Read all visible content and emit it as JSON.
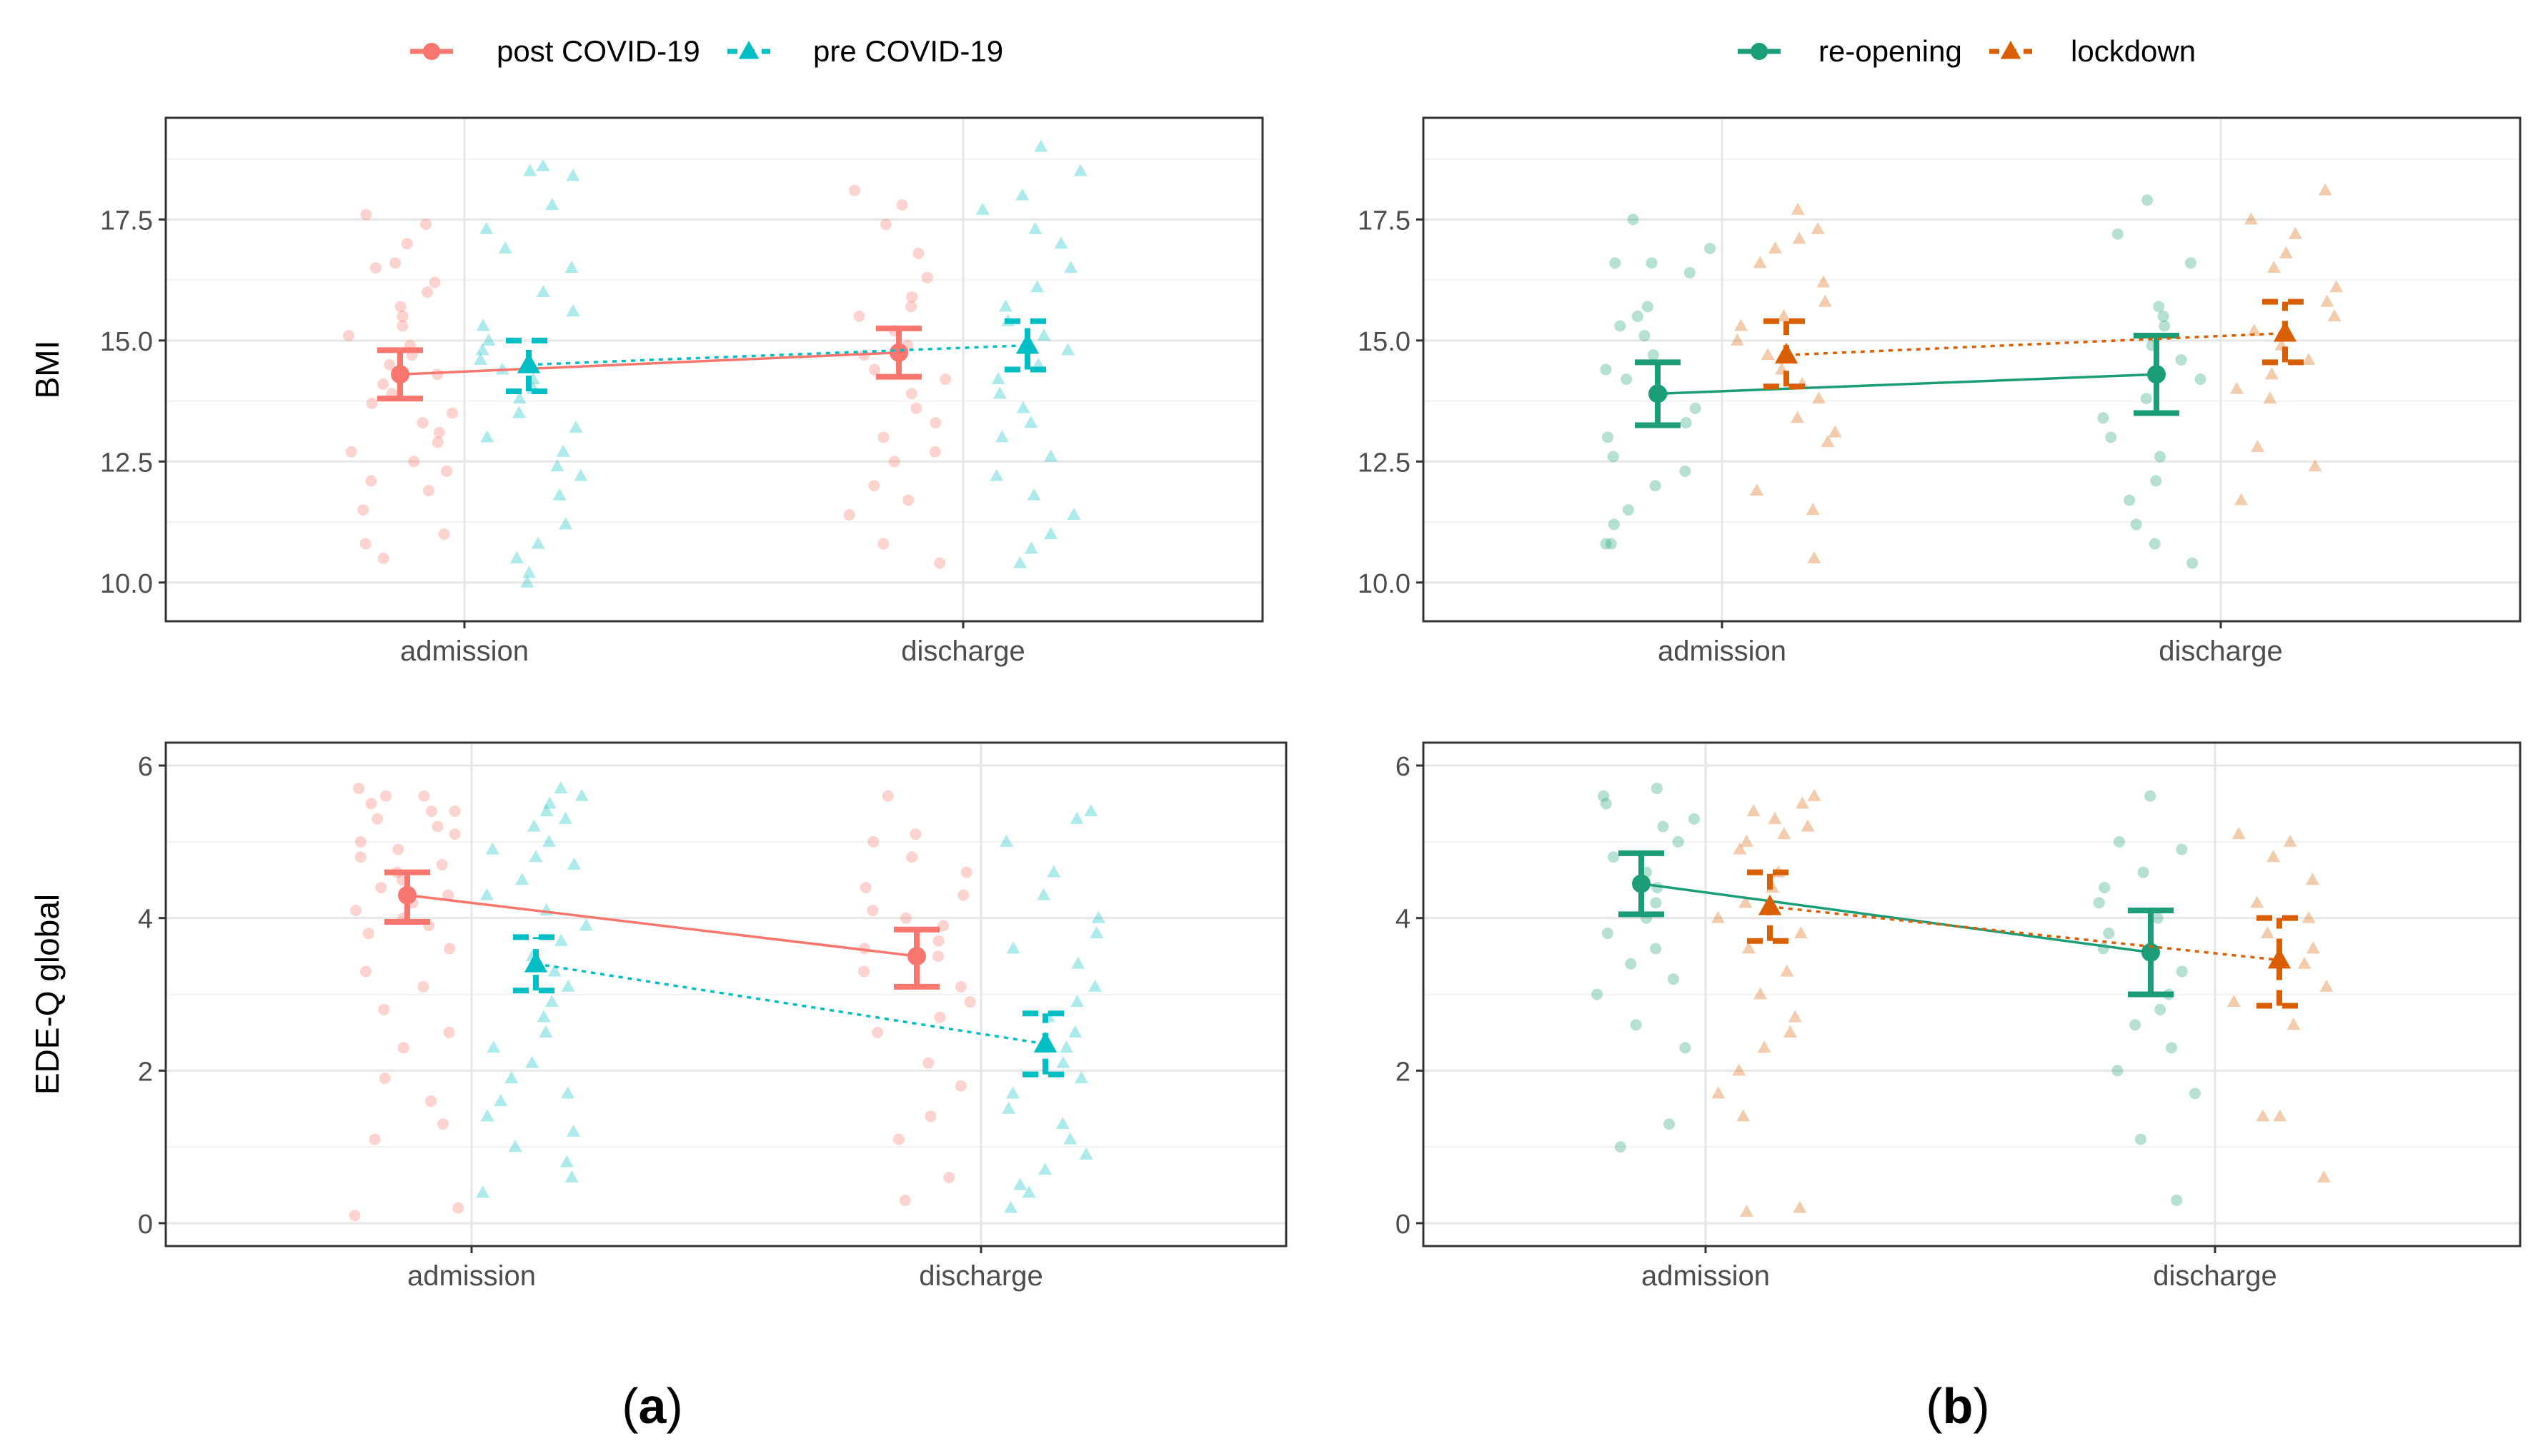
{
  "figure": {
    "panel_labels": {
      "a": {
        "open": "(",
        "letter": "a",
        "close": ")"
      },
      "b": {
        "open": "(",
        "letter": "b",
        "close": ")"
      }
    },
    "legends": {
      "a": [
        {
          "label": "post COVID-19",
          "marker": "circle",
          "color": "#F8766D",
          "line": "solid"
        },
        {
          "label": "pre COVID-19",
          "marker": "triangle",
          "color": "#00BFC4",
          "line": "dashed"
        }
      ],
      "b": [
        {
          "label": "re-opening",
          "marker": "circle",
          "color": "#1B9E77",
          "line": "solid"
        },
        {
          "label": "lockdown",
          "marker": "triangle",
          "color": "#D95F02",
          "line": "dashed"
        }
      ]
    }
  },
  "chart_data": [
    {
      "id": "a-bmi",
      "type": "scatter",
      "panel": "a",
      "ylabel": "BMI",
      "ylim": [
        9.2,
        19.6
      ],
      "yticks": [
        10.0,
        12.5,
        15.0,
        17.5
      ],
      "ytick_labels": [
        "10.0",
        "12.5",
        "15.0",
        "17.5"
      ],
      "categories": [
        "admission",
        "discharge"
      ],
      "series": [
        {
          "name": "post COVID-19",
          "color": "#F8766D",
          "marker": "circle",
          "line": "solid",
          "means": [
            14.3,
            14.75
          ],
          "ci_low": [
            13.8,
            14.25
          ],
          "ci_high": [
            14.8,
            15.25
          ],
          "points": [
            [
              17.6,
              17.4,
              17.0,
              16.6,
              16.5,
              16.2,
              16.0,
              15.7,
              15.5,
              15.3,
              15.1,
              14.9,
              14.7,
              14.5,
              14.3,
              14.1,
              13.9,
              13.7,
              13.5,
              13.3,
              13.1,
              12.9,
              12.7,
              12.5,
              12.3,
              12.1,
              11.9,
              11.5,
              11.0,
              10.8,
              10.5
            ],
            [
              18.1,
              17.8,
              17.4,
              16.8,
              16.3,
              15.9,
              15.7,
              15.5,
              15.2,
              14.9,
              14.7,
              14.4,
              14.2,
              13.9,
              13.6,
              13.3,
              13.0,
              12.7,
              12.5,
              12.0,
              11.7,
              11.4,
              10.8,
              10.4
            ]
          ]
        },
        {
          "name": "pre COVID-19",
          "color": "#00BFC4",
          "marker": "triangle",
          "line": "dashed",
          "means": [
            14.5,
            14.9
          ],
          "ci_low": [
            13.95,
            14.4
          ],
          "ci_high": [
            15.0,
            15.4
          ],
          "points": [
            [
              18.6,
              18.5,
              18.4,
              17.8,
              17.3,
              16.9,
              16.5,
              16.0,
              15.6,
              15.3,
              15.0,
              14.8,
              14.6,
              14.4,
              14.2,
              14.0,
              13.8,
              13.5,
              13.2,
              13.0,
              12.7,
              12.4,
              12.2,
              11.8,
              11.2,
              10.8,
              10.5,
              10.2,
              10.0
            ],
            [
              19.0,
              18.5,
              18.0,
              17.7,
              17.3,
              17.0,
              16.5,
              16.1,
              15.7,
              15.4,
              15.1,
              14.8,
              14.5,
              14.2,
              13.9,
              13.6,
              13.3,
              13.0,
              12.6,
              12.2,
              11.8,
              11.4,
              11.0,
              10.7,
              10.4
            ]
          ]
        }
      ]
    },
    {
      "id": "b-bmi",
      "type": "scatter",
      "panel": "b",
      "ylabel": "",
      "ylim": [
        9.2,
        19.6
      ],
      "yticks": [
        10.0,
        12.5,
        15.0,
        17.5
      ],
      "ytick_labels": [
        "10.0",
        "12.5",
        "15.0",
        "17.5"
      ],
      "categories": [
        "admission",
        "discharge"
      ],
      "series": [
        {
          "name": "re-opening",
          "color": "#1B9E77",
          "marker": "circle",
          "line": "solid",
          "means": [
            13.9,
            14.3
          ],
          "ci_low": [
            13.25,
            13.5
          ],
          "ci_high": [
            14.55,
            15.1
          ],
          "points": [
            [
              17.5,
              16.9,
              16.6,
              16.6,
              16.4,
              15.7,
              15.5,
              15.3,
              15.1,
              14.7,
              14.4,
              14.2,
              13.9,
              13.6,
              13.3,
              13.0,
              12.6,
              12.3,
              12.0,
              11.5,
              11.2,
              10.8,
              10.8
            ],
            [
              17.9,
              17.2,
              16.6,
              15.7,
              15.5,
              15.3,
              14.9,
              14.6,
              14.2,
              13.8,
              13.4,
              13.0,
              12.6,
              12.1,
              11.7,
              11.2,
              10.8,
              10.4
            ]
          ]
        },
        {
          "name": "lockdown",
          "color": "#D95F02",
          "marker": "triangle",
          "line": "dashed",
          "means": [
            14.7,
            15.15
          ],
          "ci_low": [
            14.05,
            14.55
          ],
          "ci_high": [
            15.4,
            15.8
          ],
          "points": [
            [
              17.7,
              17.3,
              17.1,
              16.9,
              16.6,
              16.2,
              15.8,
              15.5,
              15.3,
              15.0,
              14.7,
              14.4,
              14.1,
              13.8,
              13.4,
              13.1,
              12.9,
              11.9,
              11.5,
              10.5
            ],
            [
              18.1,
              17.5,
              17.2,
              16.8,
              16.5,
              16.1,
              15.8,
              15.5,
              15.2,
              14.9,
              14.6,
              14.3,
              14.0,
              13.8,
              12.8,
              12.4,
              11.7
            ]
          ]
        }
      ]
    },
    {
      "id": "a-edeq",
      "type": "scatter",
      "panel": "a",
      "ylabel": "EDE-Q global",
      "ylim": [
        -0.3,
        6.3
      ],
      "yticks": [
        0,
        2,
        4,
        6
      ],
      "ytick_labels": [
        "0",
        "2",
        "4",
        "6"
      ],
      "categories": [
        "admission",
        "discharge"
      ],
      "series": [
        {
          "name": "post COVID-19",
          "color": "#F8766D",
          "marker": "circle",
          "line": "solid",
          "means": [
            4.3,
            3.5
          ],
          "ci_low": [
            3.95,
            3.1
          ],
          "ci_high": [
            4.6,
            3.85
          ],
          "points": [
            [
              5.7,
              5.6,
              5.6,
              5.5,
              5.4,
              5.4,
              5.3,
              5.2,
              5.1,
              5.0,
              4.9,
              4.8,
              4.7,
              4.6,
              4.5,
              4.4,
              4.3,
              4.2,
              4.1,
              4.0,
              3.9,
              3.8,
              3.6,
              3.3,
              3.1,
              2.8,
              2.5,
              2.3,
              1.9,
              1.6,
              1.3,
              1.1,
              0.2,
              0.1
            ],
            [
              5.6,
              5.1,
              5.0,
              4.8,
              4.6,
              4.4,
              4.3,
              4.1,
              4.0,
              3.9,
              3.7,
              3.6,
              3.5,
              3.3,
              3.1,
              2.9,
              2.7,
              2.5,
              2.1,
              1.8,
              1.4,
              1.1,
              0.6,
              0.3
            ]
          ]
        },
        {
          "name": "pre COVID-19",
          "color": "#00BFC4",
          "marker": "triangle",
          "line": "dashed",
          "means": [
            3.4,
            2.35
          ],
          "ci_low": [
            3.05,
            1.95
          ],
          "ci_high": [
            3.75,
            2.75
          ],
          "points": [
            [
              5.7,
              5.6,
              5.5,
              5.4,
              5.3,
              5.2,
              5.0,
              4.9,
              4.8,
              4.7,
              4.5,
              4.3,
              4.1,
              3.9,
              3.7,
              3.5,
              3.3,
              3.1,
              2.9,
              2.7,
              2.5,
              2.3,
              2.1,
              1.9,
              1.7,
              1.6,
              1.4,
              1.2,
              1.0,
              0.8,
              0.6,
              0.4
            ],
            [
              5.4,
              5.3,
              5.0,
              4.6,
              4.3,
              4.0,
              3.8,
              3.6,
              3.4,
              3.1,
              2.9,
              2.7,
              2.5,
              2.3,
              2.1,
              1.9,
              1.7,
              1.5,
              1.3,
              1.1,
              0.9,
              0.7,
              0.5,
              0.4,
              0.2
            ]
          ]
        }
      ]
    },
    {
      "id": "b-edeq",
      "type": "scatter",
      "panel": "b",
      "ylabel": "",
      "ylim": [
        -0.3,
        6.3
      ],
      "yticks": [
        0,
        2,
        4,
        6
      ],
      "ytick_labels": [
        "0",
        "2",
        "4",
        "6"
      ],
      "categories": [
        "admission",
        "discharge"
      ],
      "series": [
        {
          "name": "re-opening",
          "color": "#1B9E77",
          "marker": "circle",
          "line": "solid",
          "means": [
            4.45,
            3.55
          ],
          "ci_low": [
            4.05,
            3.0
          ],
          "ci_high": [
            4.85,
            4.1
          ],
          "points": [
            [
              5.7,
              5.6,
              5.5,
              5.3,
              5.2,
              5.0,
              4.8,
              4.6,
              4.4,
              4.2,
              4.0,
              3.8,
              3.6,
              3.4,
              3.2,
              3.0,
              2.6,
              2.3,
              1.3,
              1.0
            ],
            [
              5.6,
              5.0,
              4.9,
              4.6,
              4.4,
              4.2,
              4.0,
              3.8,
              3.6,
              3.3,
              3.0,
              2.8,
              2.6,
              2.3,
              2.0,
              1.7,
              1.1,
              0.3
            ]
          ]
        },
        {
          "name": "lockdown",
          "color": "#D95F02",
          "marker": "triangle",
          "line": "dashed",
          "means": [
            4.15,
            3.45
          ],
          "ci_low": [
            3.7,
            2.85
          ],
          "ci_high": [
            4.6,
            4.0
          ],
          "points": [
            [
              5.6,
              5.5,
              5.4,
              5.3,
              5.2,
              5.1,
              5.0,
              4.9,
              4.6,
              4.4,
              4.2,
              4.0,
              3.8,
              3.6,
              3.3,
              3.0,
              2.7,
              2.5,
              2.3,
              2.0,
              1.7,
              1.4,
              0.2,
              0.15
            ],
            [
              5.1,
              5.0,
              4.8,
              4.5,
              4.2,
              4.0,
              3.8,
              3.6,
              3.4,
              3.1,
              2.9,
              2.6,
              1.4,
              1.4,
              0.6
            ]
          ]
        }
      ]
    }
  ]
}
